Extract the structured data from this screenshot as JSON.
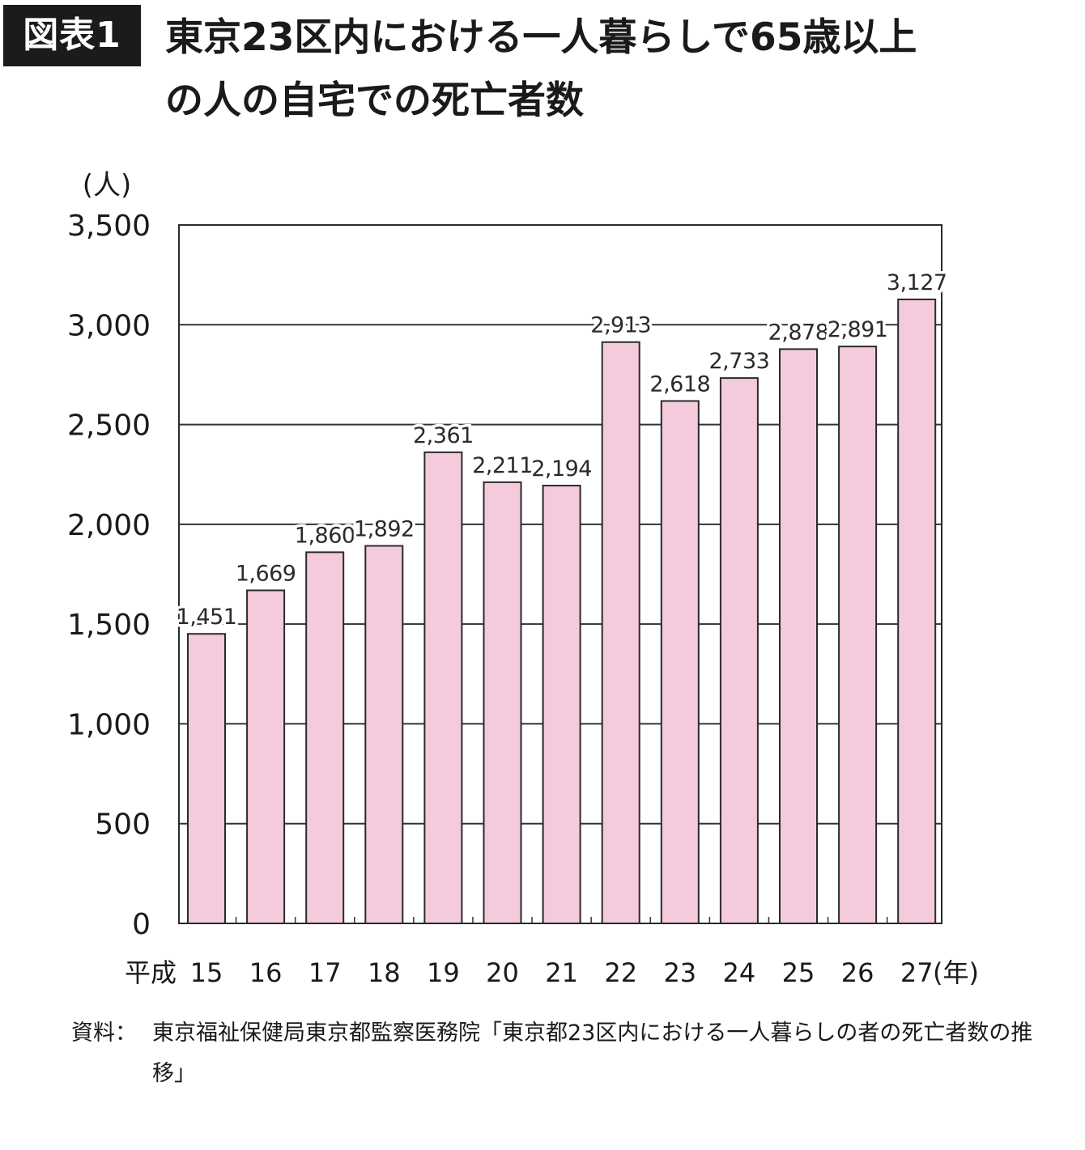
{
  "header": {
    "badge": "図表1",
    "title_line1": "東京23区内における一人暮らしで65歳以上",
    "title_line2": "の人の自宅での死亡者数"
  },
  "chart_data": {
    "type": "bar",
    "ylabel": "(人)",
    "xlabel_prefix": "平成",
    "xlabel_suffix": "(年)",
    "categories": [
      "15",
      "16",
      "17",
      "18",
      "19",
      "20",
      "21",
      "22",
      "23",
      "24",
      "25",
      "26",
      "27"
    ],
    "values": [
      1451,
      1669,
      1860,
      1892,
      2361,
      2211,
      2194,
      2913,
      2618,
      2733,
      2878,
      2891,
      3127
    ],
    "value_labels": [
      "1,451",
      "1,669",
      "1,860",
      "1,892",
      "2,361",
      "2,211",
      "2,194",
      "2,913",
      "2,618",
      "2,733",
      "2,878",
      "2,891",
      "3,127"
    ],
    "ylim": [
      0,
      3500
    ],
    "yticks": [
      0,
      500,
      1000,
      1500,
      2000,
      2500,
      3000,
      3500
    ],
    "ytick_labels": [
      "0",
      "500",
      "1,000",
      "1,500",
      "2,000",
      "2,500",
      "3,000",
      "3,500"
    ],
    "grid": true,
    "colors": {
      "bar_fill": "#f4cbdc",
      "bar_stroke": "#2a2a2a",
      "grid": "#333333"
    }
  },
  "footer": {
    "source_label": "資料：",
    "source_text": "東京福祉保健局東京都監察医務院「東京都23区内における一人暮らしの者の死亡者数の推移」"
  }
}
